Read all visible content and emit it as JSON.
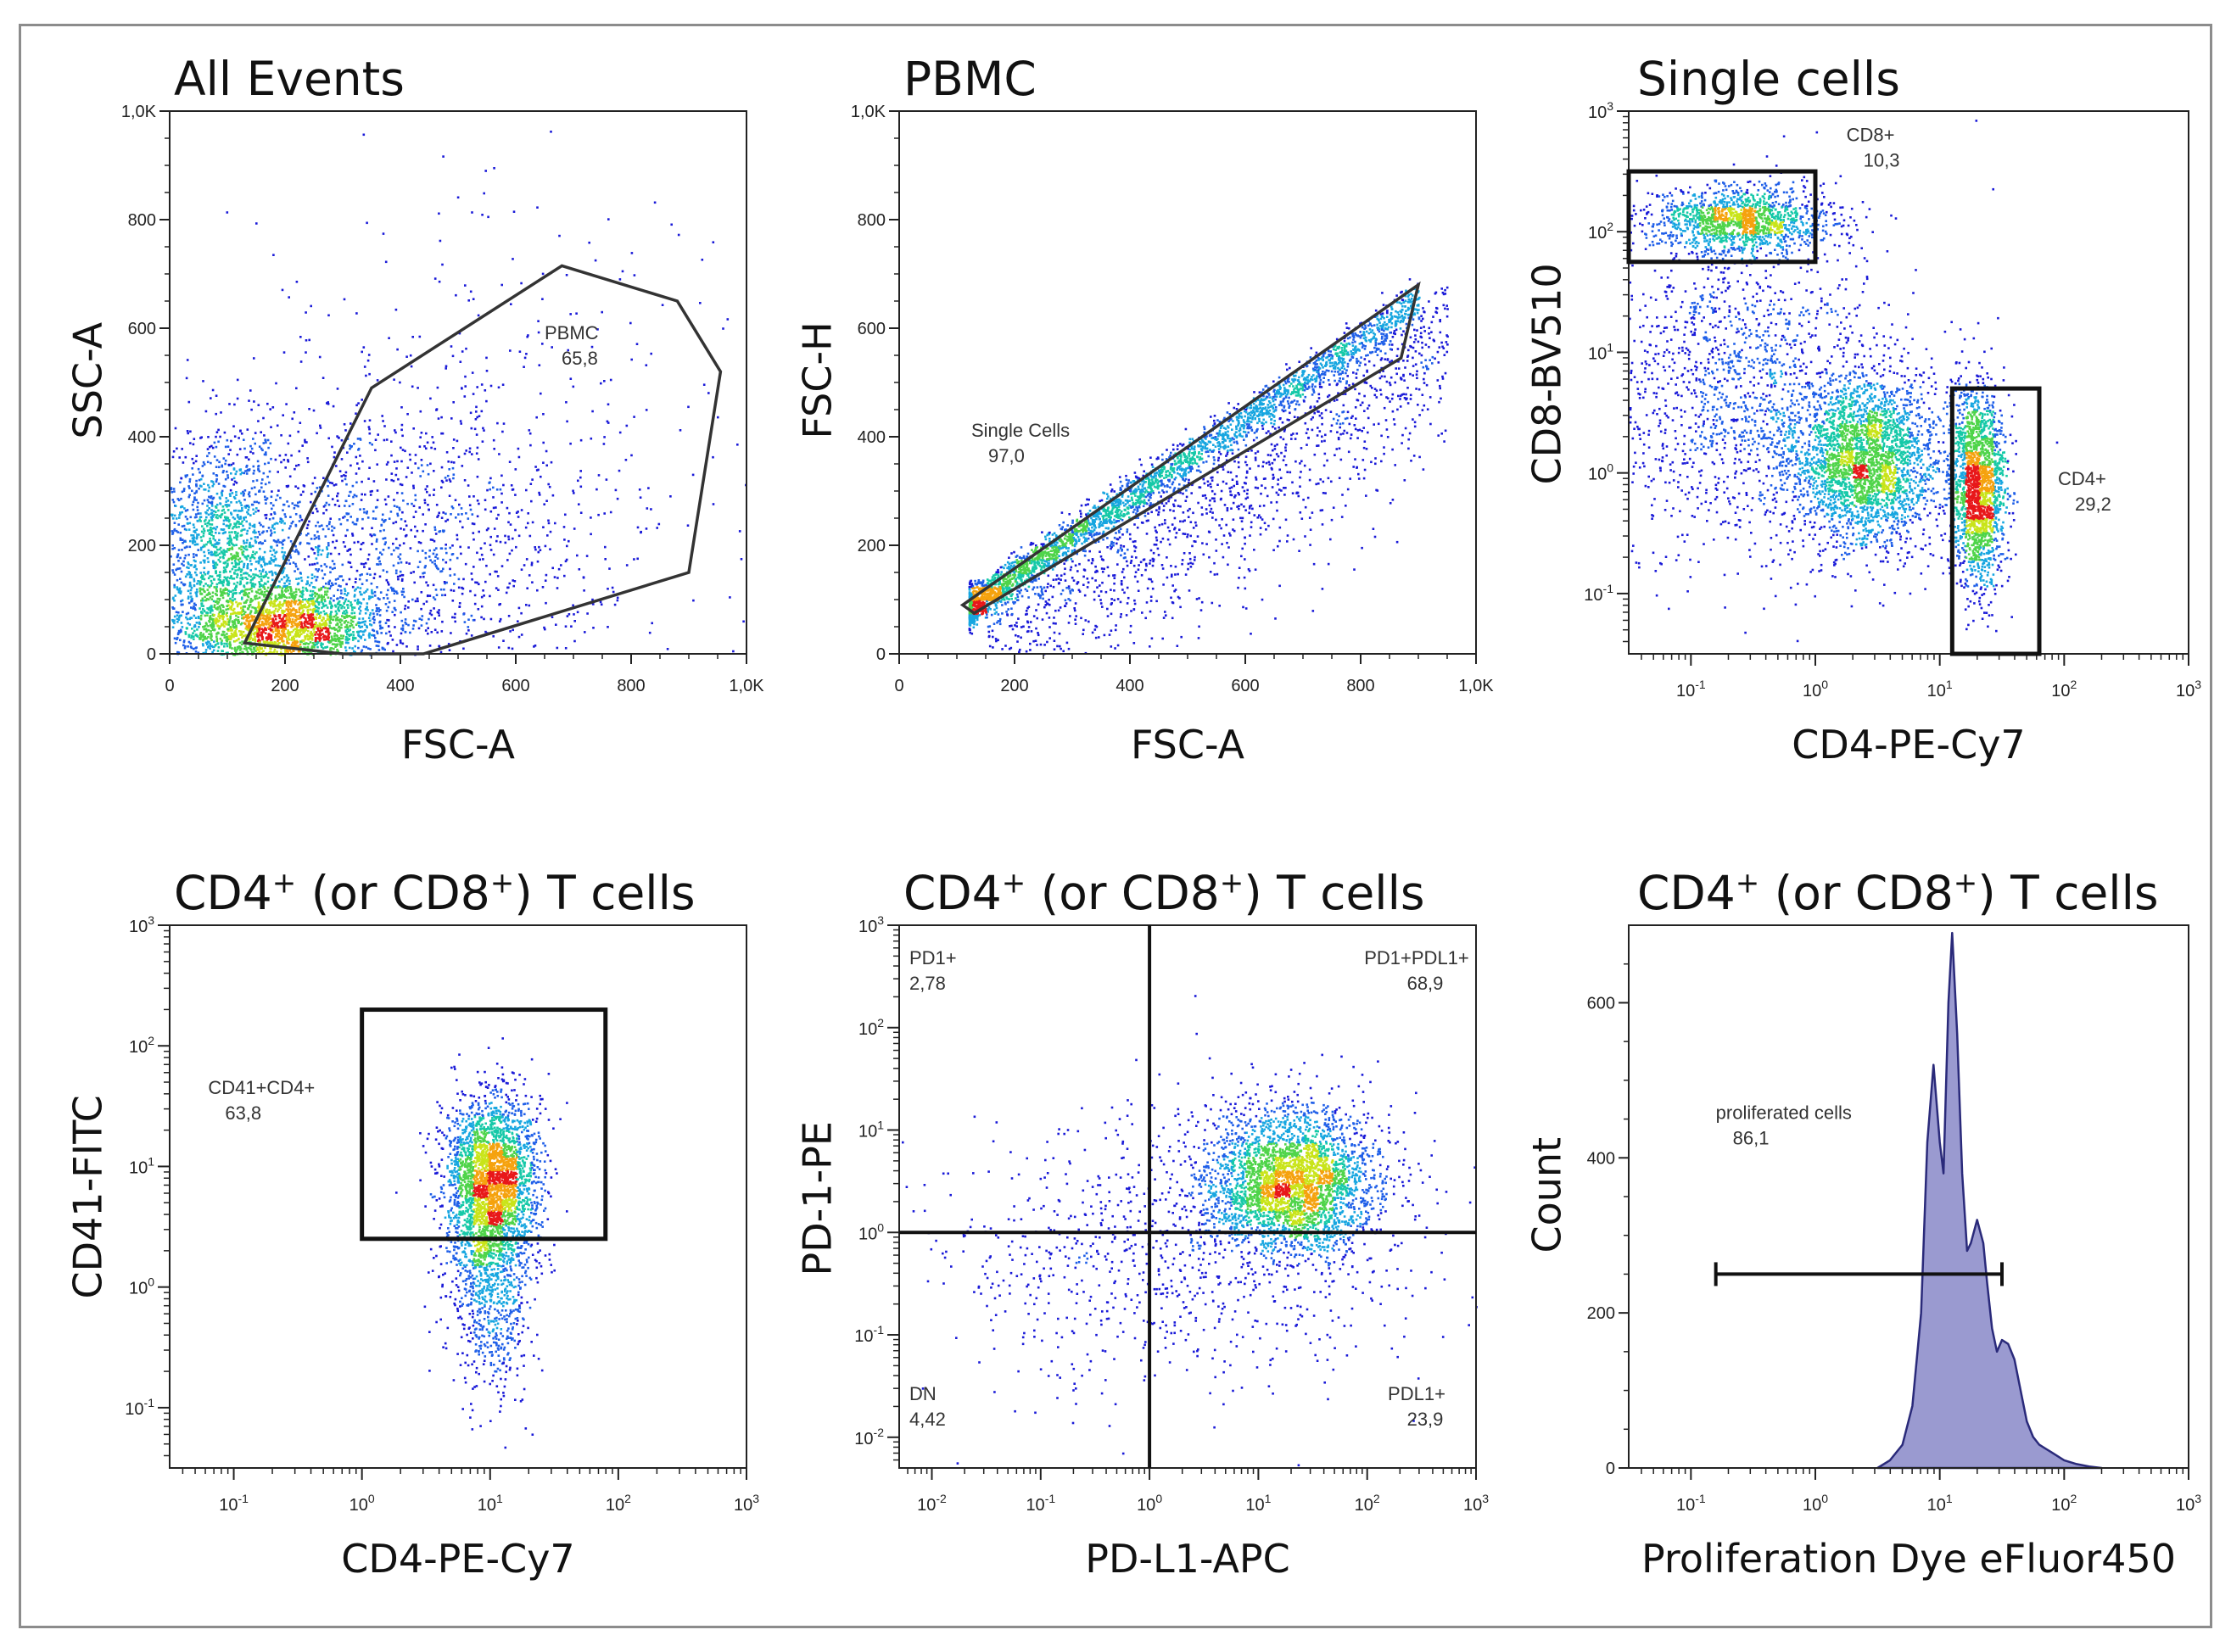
{
  "chart_data": [
    {
      "type": "scatter",
      "title": "All Events",
      "xlabel": "FSC-A",
      "ylabel": "SSC-A",
      "xscale": "linear",
      "yscale": "linear",
      "xlim": [
        0,
        1000
      ],
      "ylim": [
        0,
        1000
      ],
      "x_ticks": [
        "0",
        "200",
        "400",
        "600",
        "800",
        "1,0K"
      ],
      "y_ticks": [
        "0",
        "200",
        "400",
        "600",
        "800",
        "1,0K"
      ],
      "clusters": [
        {
          "x": 200,
          "y": 50,
          "sx": 90,
          "sy": 45,
          "n": 2200
        },
        {
          "x": 90,
          "y": 180,
          "sx": 70,
          "sy": 110,
          "n": 1500
        },
        {
          "x": 350,
          "y": 200,
          "sx": 200,
          "sy": 140,
          "n": 1500
        },
        {
          "x": 550,
          "y": 450,
          "sx": 280,
          "sy": 250,
          "n": 300
        }
      ],
      "gates": [
        {
          "type": "polygon",
          "label": "PBMC",
          "value": "65,8",
          "points": [
            [
              130,
              20
            ],
            [
              350,
              490
            ],
            [
              680,
              715
            ],
            [
              880,
              650
            ],
            [
              955,
              520
            ],
            [
              900,
              150
            ],
            [
              440,
              0
            ],
            [
              300,
              0
            ]
          ],
          "label_at": [
            650,
            580
          ]
        }
      ]
    },
    {
      "type": "scatter",
      "title": "PBMC",
      "xlabel": "FSC-A",
      "ylabel": "FSC-H",
      "xscale": "linear",
      "yscale": "linear",
      "xlim": [
        0,
        1000
      ],
      "ylim": [
        0,
        1000
      ],
      "x_ticks": [
        "0",
        "200",
        "400",
        "600",
        "800",
        "1,0K"
      ],
      "y_ticks": [
        "0",
        "200",
        "400",
        "600",
        "800",
        "1,0K"
      ],
      "diagonal": {
        "x0": 120,
        "x1": 900,
        "slope": 0.73,
        "spread": 18,
        "n": 2800
      },
      "extra_below": {
        "n": 1600
      },
      "gates": [
        {
          "type": "polygon",
          "label": "Single Cells",
          "value": "97,0",
          "points": [
            [
              110,
              90
            ],
            [
              900,
              680
            ],
            [
              870,
              545
            ],
            [
              130,
              75
            ]
          ],
          "label_at": [
            125,
            400
          ]
        }
      ]
    },
    {
      "type": "scatter",
      "title": "Single cells",
      "xlabel": "CD4-PE-Cy7",
      "ylabel": "CD8-BV510",
      "xscale": "log",
      "yscale": "log",
      "xlim": [
        -1.5,
        3
      ],
      "ylim": [
        -1.5,
        3
      ],
      "x_ticks": [
        "10-1",
        "100",
        "101",
        "102",
        "103"
      ],
      "y_ticks": [
        "10-1",
        "100",
        "101",
        "102",
        "103"
      ],
      "clusters": [
        {
          "x": -0.6,
          "y": 2.1,
          "sx": 0.35,
          "sy": 0.14,
          "n": 1400
        },
        {
          "x": 0.4,
          "y": 0.1,
          "sx": 0.3,
          "sy": 0.35,
          "n": 2800
        },
        {
          "x": 1.3,
          "y": -0.1,
          "sx": 0.11,
          "sy": 0.4,
          "n": 1900
        },
        {
          "x": -0.6,
          "y": 0.7,
          "sx": 0.6,
          "sy": 0.7,
          "n": 1600
        }
      ],
      "gates": [
        {
          "type": "rect",
          "label": "CD8+",
          "value": "10,3",
          "x": [
            -1.5,
            0.0
          ],
          "y": [
            1.75,
            2.5
          ],
          "label_at": [
            0.25,
            2.75
          ]
        },
        {
          "type": "rect",
          "label": "CD4+",
          "value": "29,2",
          "x": [
            1.1,
            1.8
          ],
          "y": [
            -1.5,
            0.7
          ],
          "label_at": [
            1.95,
            -0.1
          ]
        }
      ]
    },
    {
      "type": "scatter",
      "title": "CD4+ (or CD8+) T cells",
      "xlabel": "CD4-PE-Cy7",
      "ylabel": "CD41-FITC",
      "xscale": "log",
      "yscale": "log",
      "xlim": [
        -1.5,
        3
      ],
      "ylim": [
        -1.5,
        3
      ],
      "x_ticks": [
        "10-1",
        "100",
        "101",
        "102",
        "103"
      ],
      "y_ticks": [
        "10-1",
        "100",
        "101",
        "102",
        "103"
      ],
      "clusters": [
        {
          "x": 1.0,
          "y": 0.9,
          "sx": 0.18,
          "sy": 0.35,
          "n": 2400
        },
        {
          "x": 1.0,
          "y": 0.2,
          "sx": 0.16,
          "sy": 0.5,
          "n": 1100
        }
      ],
      "gates": [
        {
          "type": "rect",
          "label": "CD41+CD4+",
          "value": "63,8",
          "x": [
            0.0,
            1.9
          ],
          "y": [
            0.4,
            2.3
          ],
          "label_at": [
            -1.2,
            1.6
          ]
        }
      ]
    },
    {
      "type": "scatter",
      "title": "CD4+ (or CD8+) T cells",
      "xlabel": "PD-L1-APC",
      "ylabel": "PD-1-PE",
      "xscale": "log",
      "yscale": "log",
      "xlim": [
        -2.3,
        3
      ],
      "ylim": [
        -2.3,
        3
      ],
      "x_ticks": [
        "10-2",
        "10-1",
        "100",
        "101",
        "102",
        "103"
      ],
      "y_ticks": [
        "10-2",
        "10-1",
        "100",
        "101",
        "102",
        "103"
      ],
      "quadrant_lines": {
        "x": 0.0,
        "y": 0.0
      },
      "clusters": [
        {
          "x": 1.3,
          "y": 0.5,
          "sx": 0.4,
          "sy": 0.35,
          "n": 3200
        },
        {
          "x": 0.2,
          "y": -0.2,
          "sx": 1.1,
          "sy": 0.7,
          "n": 900
        }
      ],
      "quadrants": [
        {
          "label": "PD1+",
          "value": "2,78",
          "position": "top-left"
        },
        {
          "label": "PD1+PDL1+",
          "value": "68,9",
          "position": "top-right"
        },
        {
          "label": "DN",
          "value": "4,42",
          "position": "bottom-left"
        },
        {
          "label": "PDL1+",
          "value": "23,9",
          "position": "bottom-right"
        }
      ]
    },
    {
      "type": "area",
      "title": "CD4+ (or CD8+) T cells",
      "xlabel": "Proliferation Dye eFluor450",
      "ylabel": "Count",
      "xscale": "log",
      "xlim": [
        -1.5,
        3
      ],
      "ylim": [
        0,
        700
      ],
      "x_ticks": [
        "10-1",
        "100",
        "101",
        "102",
        "103"
      ],
      "y_ticks": [
        "0",
        "200",
        "400",
        "600"
      ],
      "x": [
        0.5,
        0.6,
        0.7,
        0.78,
        0.85,
        0.9,
        0.95,
        1.0,
        1.03,
        1.07,
        1.1,
        1.14,
        1.18,
        1.22,
        1.25,
        1.3,
        1.35,
        1.38,
        1.42,
        1.46,
        1.5,
        1.55,
        1.6,
        1.65,
        1.7,
        1.75,
        1.8,
        1.9,
        2.0,
        2.1,
        2.2,
        2.3
      ],
      "y": [
        0,
        10,
        30,
        80,
        200,
        420,
        520,
        420,
        380,
        600,
        690,
        560,
        380,
        280,
        290,
        320,
        290,
        240,
        180,
        150,
        165,
        160,
        140,
        100,
        60,
        40,
        30,
        20,
        10,
        5,
        2,
        0
      ],
      "gates": [
        {
          "type": "bar",
          "label": "proliferated cells",
          "value": "86,1",
          "x": [
            -0.8,
            1.5
          ],
          "y": 250,
          "label_at": [
            -0.8,
            450
          ]
        }
      ]
    }
  ]
}
